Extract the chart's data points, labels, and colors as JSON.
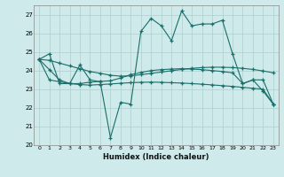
{
  "title": "",
  "xlabel": "Humidex (Indice chaleur)",
  "background_color": "#ceeaea",
  "grid_color": "#aecece",
  "line_color": "#1a6e6a",
  "xlim": [
    -0.5,
    23.5
  ],
  "ylim": [
    20,
    27.5
  ],
  "yticks": [
    20,
    21,
    22,
    23,
    24,
    25,
    26,
    27
  ],
  "xticks": [
    0,
    1,
    2,
    3,
    4,
    5,
    6,
    7,
    8,
    9,
    10,
    11,
    12,
    13,
    14,
    15,
    16,
    17,
    18,
    19,
    20,
    21,
    22,
    23
  ],
  "series1": [
    24.6,
    24.9,
    23.3,
    23.3,
    24.3,
    23.5,
    23.4,
    20.4,
    22.3,
    22.2,
    26.1,
    26.8,
    26.4,
    25.6,
    27.2,
    26.4,
    26.5,
    26.5,
    26.7,
    24.9,
    23.3,
    23.5,
    22.9,
    22.2
  ],
  "series2": [
    24.6,
    24.55,
    24.4,
    24.25,
    24.1,
    23.95,
    23.85,
    23.75,
    23.7,
    23.72,
    23.78,
    23.85,
    23.92,
    23.99,
    24.06,
    24.12,
    24.16,
    24.18,
    24.18,
    24.16,
    24.12,
    24.06,
    23.98,
    23.88
  ],
  "series3": [
    24.6,
    24.05,
    23.5,
    23.3,
    23.25,
    23.22,
    23.25,
    23.28,
    23.32,
    23.35,
    23.37,
    23.38,
    23.37,
    23.35,
    23.33,
    23.3,
    23.27,
    23.23,
    23.19,
    23.15,
    23.1,
    23.05,
    23.0,
    22.2
  ],
  "series4": [
    24.6,
    23.5,
    23.4,
    23.3,
    23.3,
    23.38,
    23.42,
    23.45,
    23.6,
    23.78,
    23.9,
    24.0,
    24.05,
    24.08,
    24.1,
    24.08,
    24.05,
    24.0,
    23.95,
    23.88,
    23.3,
    23.5,
    23.5,
    22.2
  ]
}
